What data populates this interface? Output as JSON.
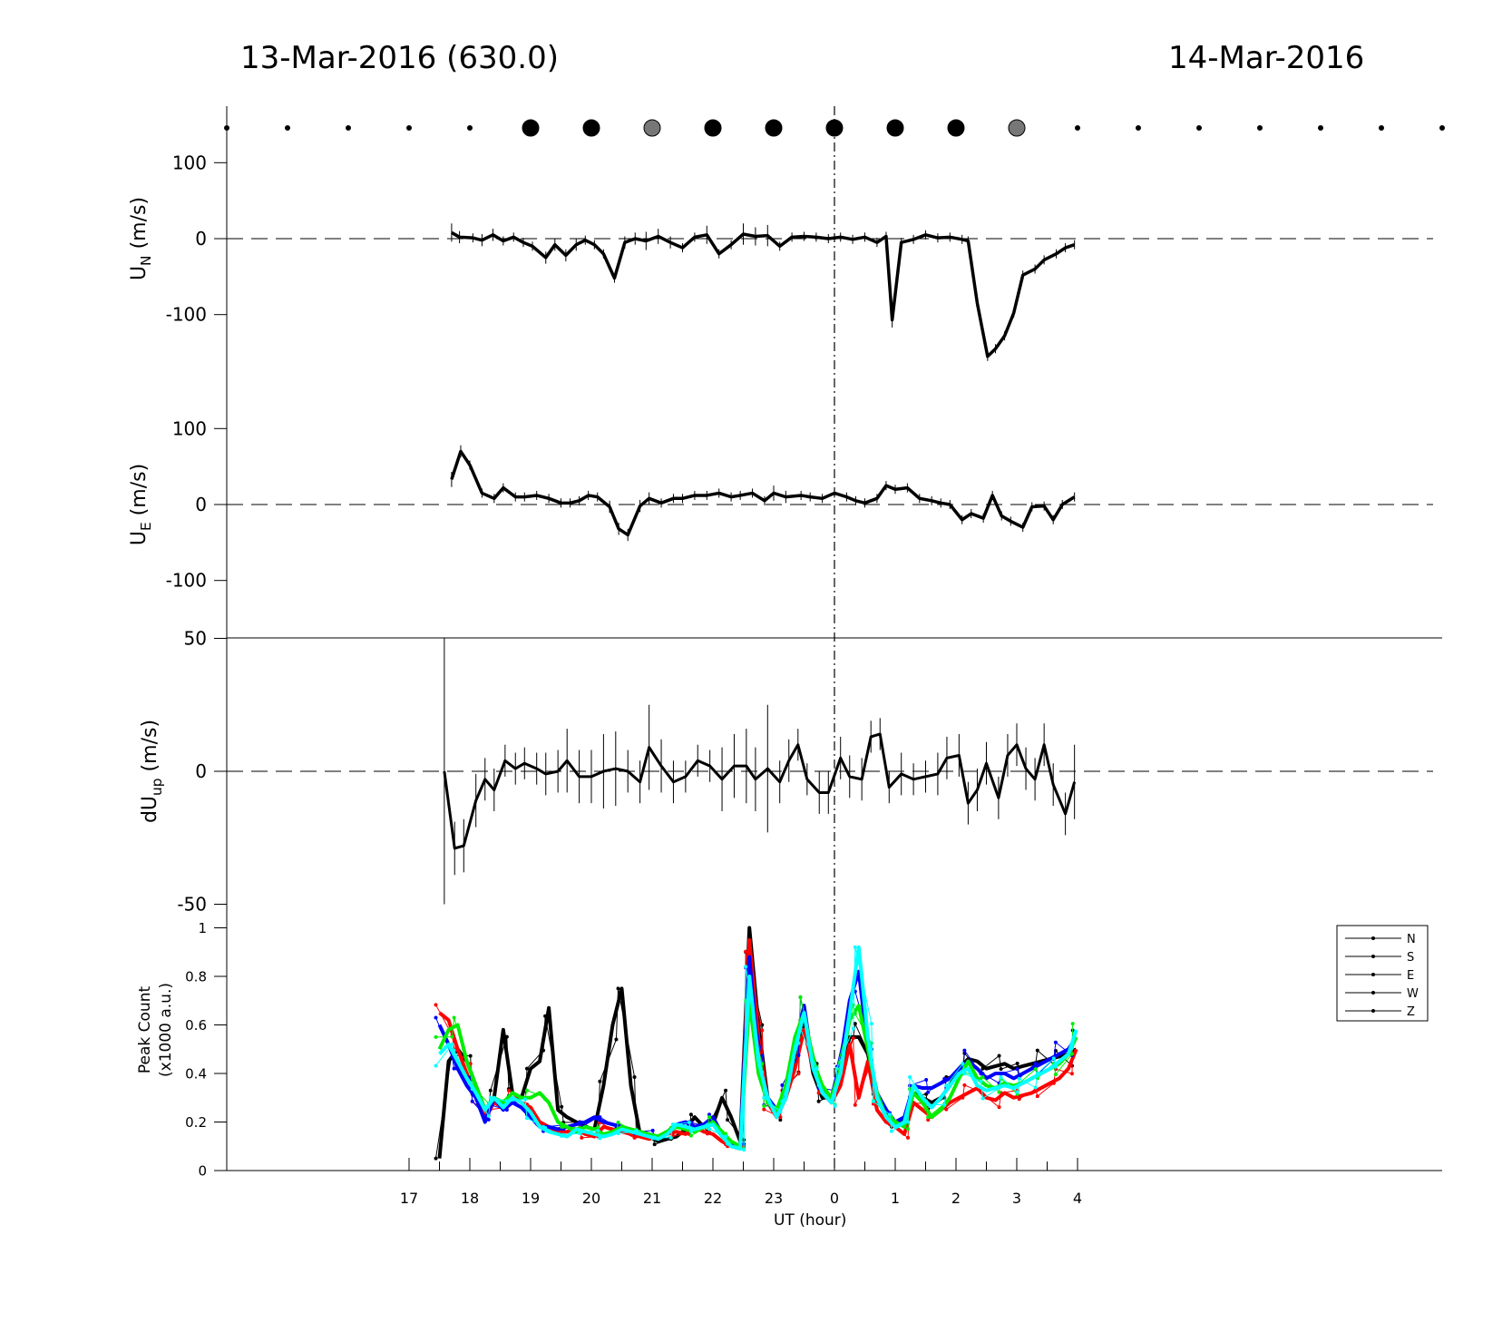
{
  "header": {
    "title_left": "13-Mar-2016 (630.0)",
    "title_right": "14-Mar-2016"
  },
  "colors": {
    "N": "#ff0000",
    "S": "#0000ff",
    "E": "#00ee00",
    "W": "#000000",
    "Z": "#00ffff",
    "dot_black": "#000000",
    "dot_gray": "#777777"
  },
  "chart_data": [
    {
      "type": "scatter",
      "name": "sky-condition-dots",
      "x": [
        14,
        15,
        16,
        17,
        18,
        19,
        20,
        21,
        22,
        23,
        24,
        25,
        26,
        27,
        28,
        29,
        30,
        31,
        32,
        33,
        34
      ],
      "size": [
        "s",
        "s",
        "s",
        "s",
        "s",
        "L",
        "L",
        "L",
        "L",
        "L",
        "L",
        "L",
        "L",
        "L",
        "s",
        "s",
        "s",
        "s",
        "s",
        "s",
        "s"
      ],
      "color": [
        "black",
        "black",
        "black",
        "black",
        "black",
        "black",
        "black",
        "gray",
        "black",
        "black",
        "black",
        "black",
        "black",
        "gray",
        "black",
        "black",
        "black",
        "black",
        "black",
        "black",
        "black"
      ]
    },
    {
      "type": "line",
      "ylabel": "U_N (m/s)",
      "yticks": [
        100,
        0,
        -100
      ],
      "ylim": [
        -175,
        155
      ],
      "x": [
        17.7,
        17.83,
        18.05,
        18.2,
        18.38,
        18.55,
        18.72,
        18.88,
        19.03,
        19.25,
        19.4,
        19.58,
        19.75,
        19.9,
        20.05,
        20.2,
        20.38,
        20.55,
        20.72,
        20.9,
        21.1,
        21.3,
        21.5,
        21.7,
        21.9,
        22.1,
        22.3,
        22.5,
        22.7,
        22.9,
        23.1,
        23.3,
        23.5,
        23.7,
        23.9,
        24.1,
        24.3,
        24.5,
        24.7,
        24.85,
        24.95,
        25.1,
        25.3,
        25.5,
        25.7,
        25.9,
        26.1,
        26.2,
        26.35,
        26.52,
        26.65,
        26.8,
        26.95,
        27.1,
        27.3,
        27.45,
        27.65,
        27.8,
        27.95
      ],
      "y": [
        8,
        2,
        1,
        -2,
        5,
        -3,
        2,
        -5,
        -10,
        -25,
        -8,
        -22,
        -8,
        -2,
        -8,
        -20,
        -52,
        -5,
        0,
        -3,
        3,
        -5,
        -12,
        2,
        5,
        -20,
        -8,
        6,
        3,
        4,
        -10,
        2,
        3,
        2,
        0,
        2,
        -1,
        2,
        -5,
        3,
        -107,
        -5,
        -1,
        5,
        1,
        2,
        -1,
        -3,
        -85,
        -155,
        -145,
        -128,
        -98,
        -48,
        -40,
        -28,
        -20,
        -12,
        -8
      ],
      "err": [
        12,
        8,
        6,
        8,
        8,
        6,
        6,
        6,
        6,
        8,
        8,
        8,
        8,
        6,
        6,
        6,
        6,
        8,
        8,
        12,
        10,
        8,
        6,
        6,
        12,
        6,
        6,
        14,
        12,
        14,
        6,
        6,
        6,
        6,
        6,
        6,
        6,
        6,
        6,
        6,
        10,
        6,
        6,
        6,
        6,
        6,
        6,
        6,
        6,
        6,
        6,
        6,
        6,
        6,
        6,
        6,
        6,
        6,
        6
      ]
    },
    {
      "type": "line",
      "ylabel": "U_E (m/s)",
      "yticks": [
        100,
        0,
        -100
      ],
      "ylim": [
        -175,
        155
      ],
      "x": [
        17.7,
        17.85,
        18.0,
        18.2,
        18.4,
        18.55,
        18.75,
        18.9,
        19.1,
        19.3,
        19.5,
        19.65,
        19.8,
        19.95,
        20.1,
        20.3,
        20.45,
        20.6,
        20.8,
        20.95,
        21.15,
        21.35,
        21.5,
        21.7,
        21.9,
        22.1,
        22.3,
        22.45,
        22.65,
        22.85,
        23.0,
        23.2,
        23.45,
        23.6,
        23.8,
        24.0,
        24.2,
        24.35,
        24.5,
        24.7,
        24.85,
        25.0,
        25.2,
        25.4,
        25.6,
        25.75,
        25.9,
        26.1,
        26.25,
        26.45,
        26.6,
        26.75,
        26.9,
        27.1,
        27.25,
        27.45,
        27.6,
        27.75,
        27.95
      ],
      "y": [
        33,
        70,
        52,
        15,
        8,
        22,
        10,
        10,
        12,
        8,
        2,
        2,
        5,
        12,
        10,
        -3,
        -32,
        -40,
        -2,
        8,
        2,
        8,
        8,
        12,
        12,
        15,
        10,
        12,
        15,
        5,
        15,
        10,
        12,
        10,
        8,
        15,
        10,
        5,
        2,
        8,
        25,
        20,
        22,
        8,
        5,
        2,
        0,
        -20,
        -12,
        -18,
        12,
        -15,
        -22,
        -30,
        -3,
        -2,
        -20,
        0,
        10
      ],
      "err": [
        10,
        8,
        6,
        6,
        6,
        6,
        6,
        6,
        6,
        6,
        6,
        6,
        6,
        6,
        6,
        8,
        8,
        8,
        8,
        8,
        6,
        6,
        6,
        6,
        6,
        6,
        6,
        6,
        6,
        6,
        10,
        8,
        6,
        6,
        6,
        6,
        6,
        6,
        6,
        6,
        6,
        6,
        6,
        6,
        6,
        6,
        6,
        6,
        6,
        6,
        6,
        6,
        6,
        6,
        6,
        6,
        6,
        6,
        6
      ]
    },
    {
      "type": "line",
      "ylabel": "dU_up (m/s)",
      "yticks": [
        50,
        0,
        -50
      ],
      "ylim": [
        -50,
        50
      ],
      "x": [
        17.58,
        17.75,
        17.9,
        18.1,
        18.25,
        18.4,
        18.58,
        18.75,
        18.9,
        19.1,
        19.25,
        19.45,
        19.6,
        19.8,
        20.0,
        20.2,
        20.4,
        20.6,
        20.8,
        20.95,
        21.15,
        21.35,
        21.55,
        21.75,
        21.95,
        22.15,
        22.35,
        22.55,
        22.7,
        22.9,
        23.1,
        23.25,
        23.4,
        23.55,
        23.75,
        23.9,
        24.1,
        24.25,
        24.45,
        24.6,
        24.75,
        24.9,
        25.1,
        25.3,
        25.5,
        25.7,
        25.85,
        26.05,
        26.2,
        26.35,
        26.5,
        26.7,
        26.85,
        27.0,
        27.15,
        27.3,
        27.45,
        27.6,
        27.8,
        27.95
      ],
      "y": [
        0,
        -29,
        -28,
        -11,
        -3,
        -7,
        4,
        1,
        3,
        1,
        -1,
        0,
        4,
        -2,
        -2,
        0,
        1,
        0,
        -4,
        9,
        2,
        -4,
        -2,
        4,
        2,
        -3,
        2,
        2,
        -3,
        1,
        -4,
        4,
        10,
        -3,
        -8,
        -8,
        5,
        -2,
        -3,
        13,
        14,
        -6,
        -1,
        -3,
        -2,
        -1,
        5,
        6,
        -12,
        -7,
        3,
        -10,
        6,
        10,
        1,
        -3,
        10,
        -5,
        -16,
        -4
      ],
      "err": [
        50,
        10,
        10,
        10,
        8,
        8,
        6,
        6,
        6,
        6,
        8,
        8,
        12,
        10,
        10,
        14,
        14,
        8,
        8,
        16,
        10,
        8,
        6,
        6,
        6,
        12,
        12,
        14,
        12,
        24,
        8,
        8,
        6,
        6,
        8,
        8,
        8,
        8,
        8,
        6,
        6,
        6,
        8,
        6,
        6,
        8,
        8,
        8,
        8,
        8,
        8,
        8,
        8,
        8,
        8,
        8,
        8,
        8,
        8,
        14
      ]
    },
    {
      "type": "line",
      "xlabel": "UT (hour)",
      "ylabel": "Peak Count\n(x1000 a.u.)",
      "xticks": [
        "17",
        "18",
        "19",
        "20",
        "21",
        "22",
        "23",
        "0",
        "1",
        "2",
        "3",
        "4"
      ],
      "yticks": [
        "0",
        "0.2",
        "0.4",
        "0.6",
        "0.8",
        "1"
      ],
      "ylim": [
        0,
        1.04
      ],
      "legend": {
        "position": "right",
        "entries": [
          "N",
          "S",
          "E",
          "W",
          "Z"
        ]
      },
      "x": [
        17.5,
        17.65,
        17.8,
        17.95,
        18.1,
        18.25,
        18.4,
        18.55,
        18.7,
        18.85,
        19.0,
        19.15,
        19.3,
        19.45,
        19.6,
        19.75,
        19.9,
        20.05,
        20.2,
        20.35,
        20.5,
        20.65,
        20.8,
        20.95,
        21.1,
        21.25,
        21.4,
        21.55,
        21.7,
        21.85,
        22.0,
        22.15,
        22.3,
        22.45,
        22.6,
        22.75,
        22.9,
        23.05,
        23.2,
        23.35,
        23.5,
        23.65,
        23.8,
        23.95,
        24.1,
        24.25,
        24.4,
        24.55,
        24.7,
        24.85,
        25.0,
        25.15,
        25.3,
        25.45,
        25.6,
        25.75,
        25.9,
        26.05,
        26.2,
        26.35,
        26.5,
        26.65,
        26.8,
        26.95,
        27.1,
        27.25,
        27.4,
        27.55,
        27.7,
        27.85,
        27.98
      ],
      "series": [
        {
          "name": "N",
          "values": [
            0.65,
            0.62,
            0.5,
            0.4,
            0.3,
            0.22,
            0.28,
            0.26,
            0.3,
            0.28,
            0.26,
            0.2,
            0.18,
            0.16,
            0.16,
            0.17,
            0.15,
            0.14,
            0.18,
            0.17,
            0.16,
            0.15,
            0.14,
            0.13,
            0.14,
            0.15,
            0.16,
            0.15,
            0.18,
            0.16,
            0.15,
            0.12,
            0.1,
            0.09,
            0.95,
            0.55,
            0.28,
            0.22,
            0.3,
            0.42,
            0.58,
            0.42,
            0.32,
            0.28,
            0.35,
            0.52,
            0.3,
            0.45,
            0.25,
            0.2,
            0.18,
            0.15,
            0.28,
            0.25,
            0.22,
            0.25,
            0.28,
            0.3,
            0.32,
            0.34,
            0.3,
            0.29,
            0.32,
            0.3,
            0.31,
            0.32,
            0.34,
            0.36,
            0.38,
            0.42,
            0.5
          ]
        },
        {
          "name": "S",
          "values": [
            0.6,
            0.52,
            0.42,
            0.35,
            0.3,
            0.2,
            0.3,
            0.25,
            0.28,
            0.26,
            0.22,
            0.18,
            0.18,
            0.17,
            0.18,
            0.19,
            0.2,
            0.22,
            0.2,
            0.19,
            0.18,
            0.17,
            0.16,
            0.15,
            0.14,
            0.16,
            0.19,
            0.2,
            0.18,
            0.19,
            0.22,
            0.15,
            0.11,
            0.1,
            0.88,
            0.45,
            0.3,
            0.25,
            0.32,
            0.5,
            0.68,
            0.42,
            0.34,
            0.3,
            0.45,
            0.7,
            0.82,
            0.5,
            0.32,
            0.25,
            0.2,
            0.22,
            0.35,
            0.34,
            0.34,
            0.36,
            0.38,
            0.42,
            0.45,
            0.42,
            0.38,
            0.4,
            0.4,
            0.38,
            0.4,
            0.42,
            0.44,
            0.46,
            0.48,
            0.5,
            0.55
          ]
        },
        {
          "name": "E",
          "values": [
            0.5,
            0.58,
            0.6,
            0.45,
            0.35,
            0.25,
            0.3,
            0.28,
            0.32,
            0.3,
            0.3,
            0.32,
            0.28,
            0.2,
            0.18,
            0.16,
            0.18,
            0.17,
            0.15,
            0.16,
            0.18,
            0.17,
            0.16,
            0.15,
            0.14,
            0.16,
            0.18,
            0.17,
            0.16,
            0.18,
            0.2,
            0.16,
            0.12,
            0.1,
            0.7,
            0.4,
            0.28,
            0.25,
            0.35,
            0.55,
            0.65,
            0.45,
            0.35,
            0.3,
            0.42,
            0.62,
            0.68,
            0.5,
            0.32,
            0.22,
            0.2,
            0.18,
            0.32,
            0.28,
            0.22,
            0.25,
            0.3,
            0.38,
            0.45,
            0.38,
            0.35,
            0.34,
            0.36,
            0.35,
            0.36,
            0.38,
            0.4,
            0.42,
            0.44,
            0.48,
            0.55
          ]
        },
        {
          "name": "W",
          "values": [
            0.05,
            0.45,
            0.5,
            0.45,
            0.35,
            0.25,
            0.3,
            0.58,
            0.32,
            0.3,
            0.42,
            0.45,
            0.67,
            0.25,
            0.22,
            0.2,
            0.18,
            0.17,
            0.35,
            0.6,
            0.75,
            0.35,
            0.15,
            0.14,
            0.12,
            0.13,
            0.14,
            0.17,
            0.22,
            0.18,
            0.19,
            0.3,
            0.22,
            0.12,
            1.0,
            0.6,
            0.3,
            0.22,
            0.3,
            0.45,
            0.62,
            0.4,
            0.3,
            0.3,
            0.4,
            0.55,
            0.55,
            0.48,
            0.3,
            0.22,
            0.18,
            0.2,
            0.32,
            0.3,
            0.28,
            0.3,
            0.35,
            0.42,
            0.46,
            0.45,
            0.42,
            0.43,
            0.44,
            0.42,
            0.43,
            0.44,
            0.45,
            0.46,
            0.47,
            0.48,
            0.5
          ]
        },
        {
          "name": "Z",
          "values": [
            0.48,
            0.52,
            0.45,
            0.38,
            0.32,
            0.25,
            0.3,
            0.26,
            0.3,
            0.28,
            0.24,
            0.18,
            0.16,
            0.15,
            0.14,
            0.17,
            0.16,
            0.15,
            0.14,
            0.15,
            0.17,
            0.16,
            0.15,
            0.14,
            0.13,
            0.15,
            0.19,
            0.18,
            0.17,
            0.18,
            0.19,
            0.14,
            0.1,
            0.09,
            0.8,
            0.45,
            0.3,
            0.22,
            0.3,
            0.5,
            0.65,
            0.42,
            0.32,
            0.28,
            0.4,
            0.65,
            0.92,
            0.55,
            0.3,
            0.22,
            0.18,
            0.2,
            0.35,
            0.3,
            0.26,
            0.3,
            0.35,
            0.4,
            0.42,
            0.35,
            0.33,
            0.34,
            0.35,
            0.34,
            0.36,
            0.38,
            0.4,
            0.42,
            0.45,
            0.48,
            0.58
          ]
        }
      ]
    }
  ]
}
